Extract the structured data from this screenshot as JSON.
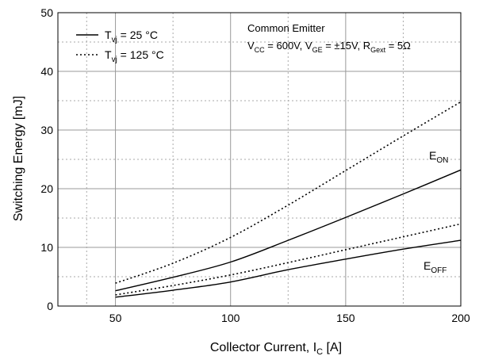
{
  "chart_data": {
    "type": "line",
    "xlabel": {
      "main": "Collector Current, I",
      "sub": "C",
      "unit": " [A]"
    },
    "ylabel": "Switching Energy [mJ]",
    "xlim": [
      25,
      200
    ],
    "ylim": [
      0,
      50
    ],
    "xticks": [
      50,
      100,
      150,
      200
    ],
    "yticks": [
      0,
      10,
      20,
      30,
      40,
      50
    ],
    "grid": true,
    "legend_position": "top-left",
    "legend": [
      {
        "style": "solid",
        "main": "T",
        "sub": "vj",
        "rest": " = 25 °C"
      },
      {
        "style": "dotted",
        "main": "T",
        "sub": "vj",
        "rest": " = 125 °C"
      }
    ],
    "annotation": {
      "line1": "Common Emitter",
      "line2": [
        {
          "t": "V"
        },
        {
          "t": "CC",
          "sub": true
        },
        {
          "t": " = 600V, V"
        },
        {
          "t": "GE",
          "sub": true
        },
        {
          "t": " = ±15V, R"
        },
        {
          "t": "Gext",
          "sub": true
        },
        {
          "t": " = 5Ω"
        }
      ]
    },
    "series_labels": {
      "eon": {
        "main": "E",
        "sub": "ON"
      },
      "eoff": {
        "main": "E",
        "sub": "OFF"
      }
    },
    "series": [
      {
        "id": "eon-25",
        "style": "solid",
        "x": [
          50,
          75,
          100,
          125,
          150,
          175,
          200
        ],
        "y": [
          2.6,
          4.9,
          7.5,
          11.2,
          15.1,
          19.1,
          23.2
        ]
      },
      {
        "id": "eon-125",
        "style": "dotted",
        "x": [
          50,
          75,
          100,
          125,
          150,
          175,
          200
        ],
        "y": [
          3.9,
          7.3,
          11.7,
          17.2,
          23.1,
          29.0,
          34.8
        ]
      },
      {
        "id": "eoff-25",
        "style": "solid",
        "x": [
          50,
          75,
          100,
          125,
          150,
          175,
          200
        ],
        "y": [
          1.5,
          2.7,
          4.1,
          6.2,
          8.0,
          9.7,
          11.2
        ]
      },
      {
        "id": "eoff-125",
        "style": "dotted",
        "x": [
          50,
          75,
          100,
          125,
          150,
          175,
          200
        ],
        "y": [
          1.9,
          3.5,
          5.3,
          7.4,
          9.6,
          11.8,
          14.0
        ]
      }
    ]
  }
}
